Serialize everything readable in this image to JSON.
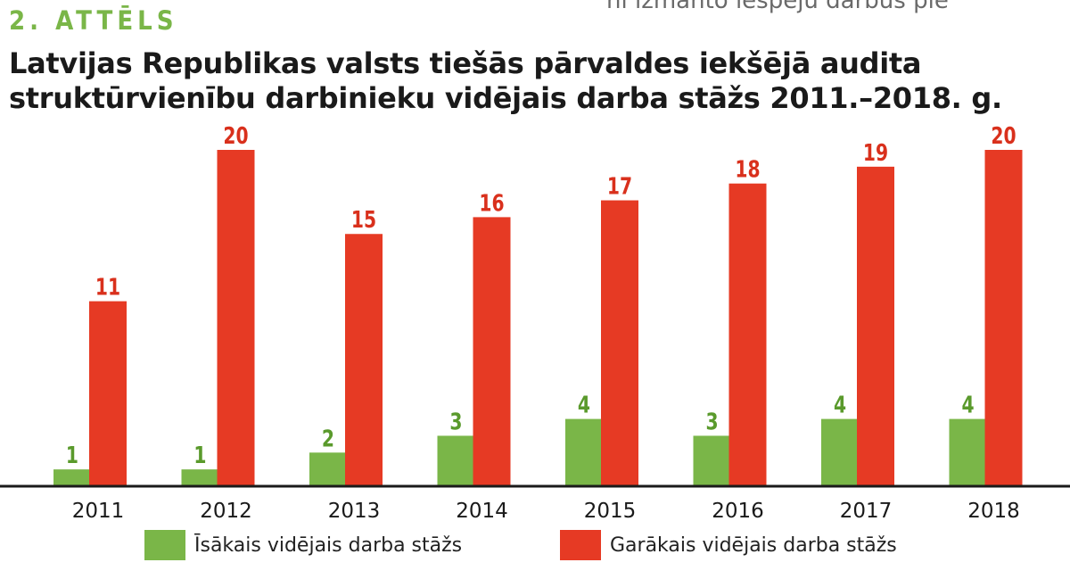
{
  "header": {
    "top_fragment": "ni izmanto iespēju darbus pie",
    "figure_label": "2. ATTĒLS",
    "title_line1": "Latvijas Republikas valsts tiešās pārvaldes iekšējā audita",
    "title_line2": "struktūrvienību darbinieku vidējais darba stāžs 2011.–2018. g."
  },
  "chart_data": {
    "type": "bar",
    "title": "Latvijas Republikas valsts tiešās pārvaldes iekšējā audita struktūrvienību darbinieku vidējais darba stāžs 2011.–2018. g.",
    "categories": [
      "2011",
      "2012",
      "2013",
      "2014",
      "2015",
      "2016",
      "2017",
      "2018"
    ],
    "series": [
      {
        "name": "Īsākais vidējais darba stāžs",
        "color": "#7ab648",
        "label_color": "#5a9a2c",
        "values": [
          1,
          1,
          2,
          3,
          4,
          3,
          4,
          4
        ]
      },
      {
        "name": "Garākais vidējais darba stāžs",
        "color": "#e63a24",
        "label_color": "#d9301c",
        "values": [
          11,
          20,
          15,
          16,
          17,
          18,
          19,
          20
        ]
      }
    ],
    "ylim": [
      0,
      20
    ],
    "grid": false,
    "legend_position": "bottom"
  }
}
